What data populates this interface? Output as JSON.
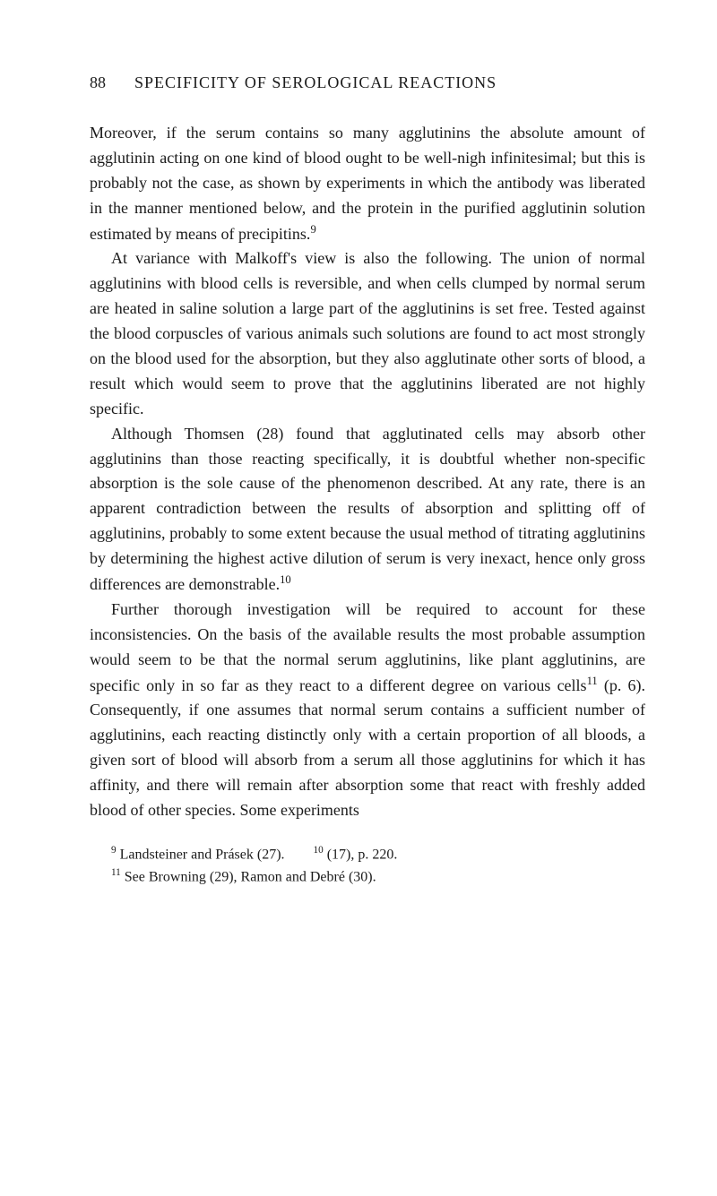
{
  "header": {
    "page_number": "88",
    "title": "SPECIFICITY OF SEROLOGICAL REACTIONS"
  },
  "paragraphs": {
    "p1": "Moreover, if the serum contains so many agglutinins the absolute amount of agglutinin acting on one kind of blood ought to be well-nigh infinitesimal; but this is probably not the case, as shown by experiments in which the antibody was liberated in the manner mentioned below, and the protein in the purified agglutinin solution estimated by means of precipitins.",
    "p1_sup": "9",
    "p2": "At variance with Malkoff's view is also the following. The union of normal agglutinins with blood cells is reversible, and when cells clumped by normal serum are heated in saline solution a large part of the agglutinins is set free. Tested against the blood corpuscles of various animals such solutions are found to act most strongly on the blood used for the absorption, but they also agglutinate other sorts of blood, a result which would seem to prove that the agglutinins liberated are not highly specific.",
    "p3": "Although Thomsen (28) found that agglutinated cells may absorb other agglutinins than those reacting specifically, it is doubtful whether non-specific absorption is the sole cause of the phenomenon described. At any rate, there is an apparent contradiction between the results of absorption and splitting off of agglutinins, probably to some extent because the usual method of titrating agglutinins by determining the highest active dilution of serum is very inexact, hence only gross differences are demonstrable.",
    "p3_sup": "10",
    "p4_a": "Further thorough investigation will be required to account for these inconsistencies. On the basis of the available results the most probable assumption would seem to be that the normal serum agglutinins, like plant agglutinins, are specific only in so far as they react to a different degree on various cells",
    "p4_sup": "11",
    "p4_b": " (p. 6). Consequently, if one assumes that normal serum contains a sufficient number of agglutinins, each reacting distinctly only with a certain proportion of all bloods, a given sort of blood will absorb from a serum all those agglutinins for which it has affinity, and there will remain after absorption some that react with freshly added blood of other species. Some experiments"
  },
  "footnotes": {
    "fn1_sup": "9",
    "fn1_text": " Landsteiner and Prásek (27).",
    "fn1_gap": "        ",
    "fn1b_sup": "10",
    "fn1b_text": " (17), p. 220.",
    "fn2_sup": "11",
    "fn2_text": " See Browning (29), Ramon and Debré (30)."
  }
}
